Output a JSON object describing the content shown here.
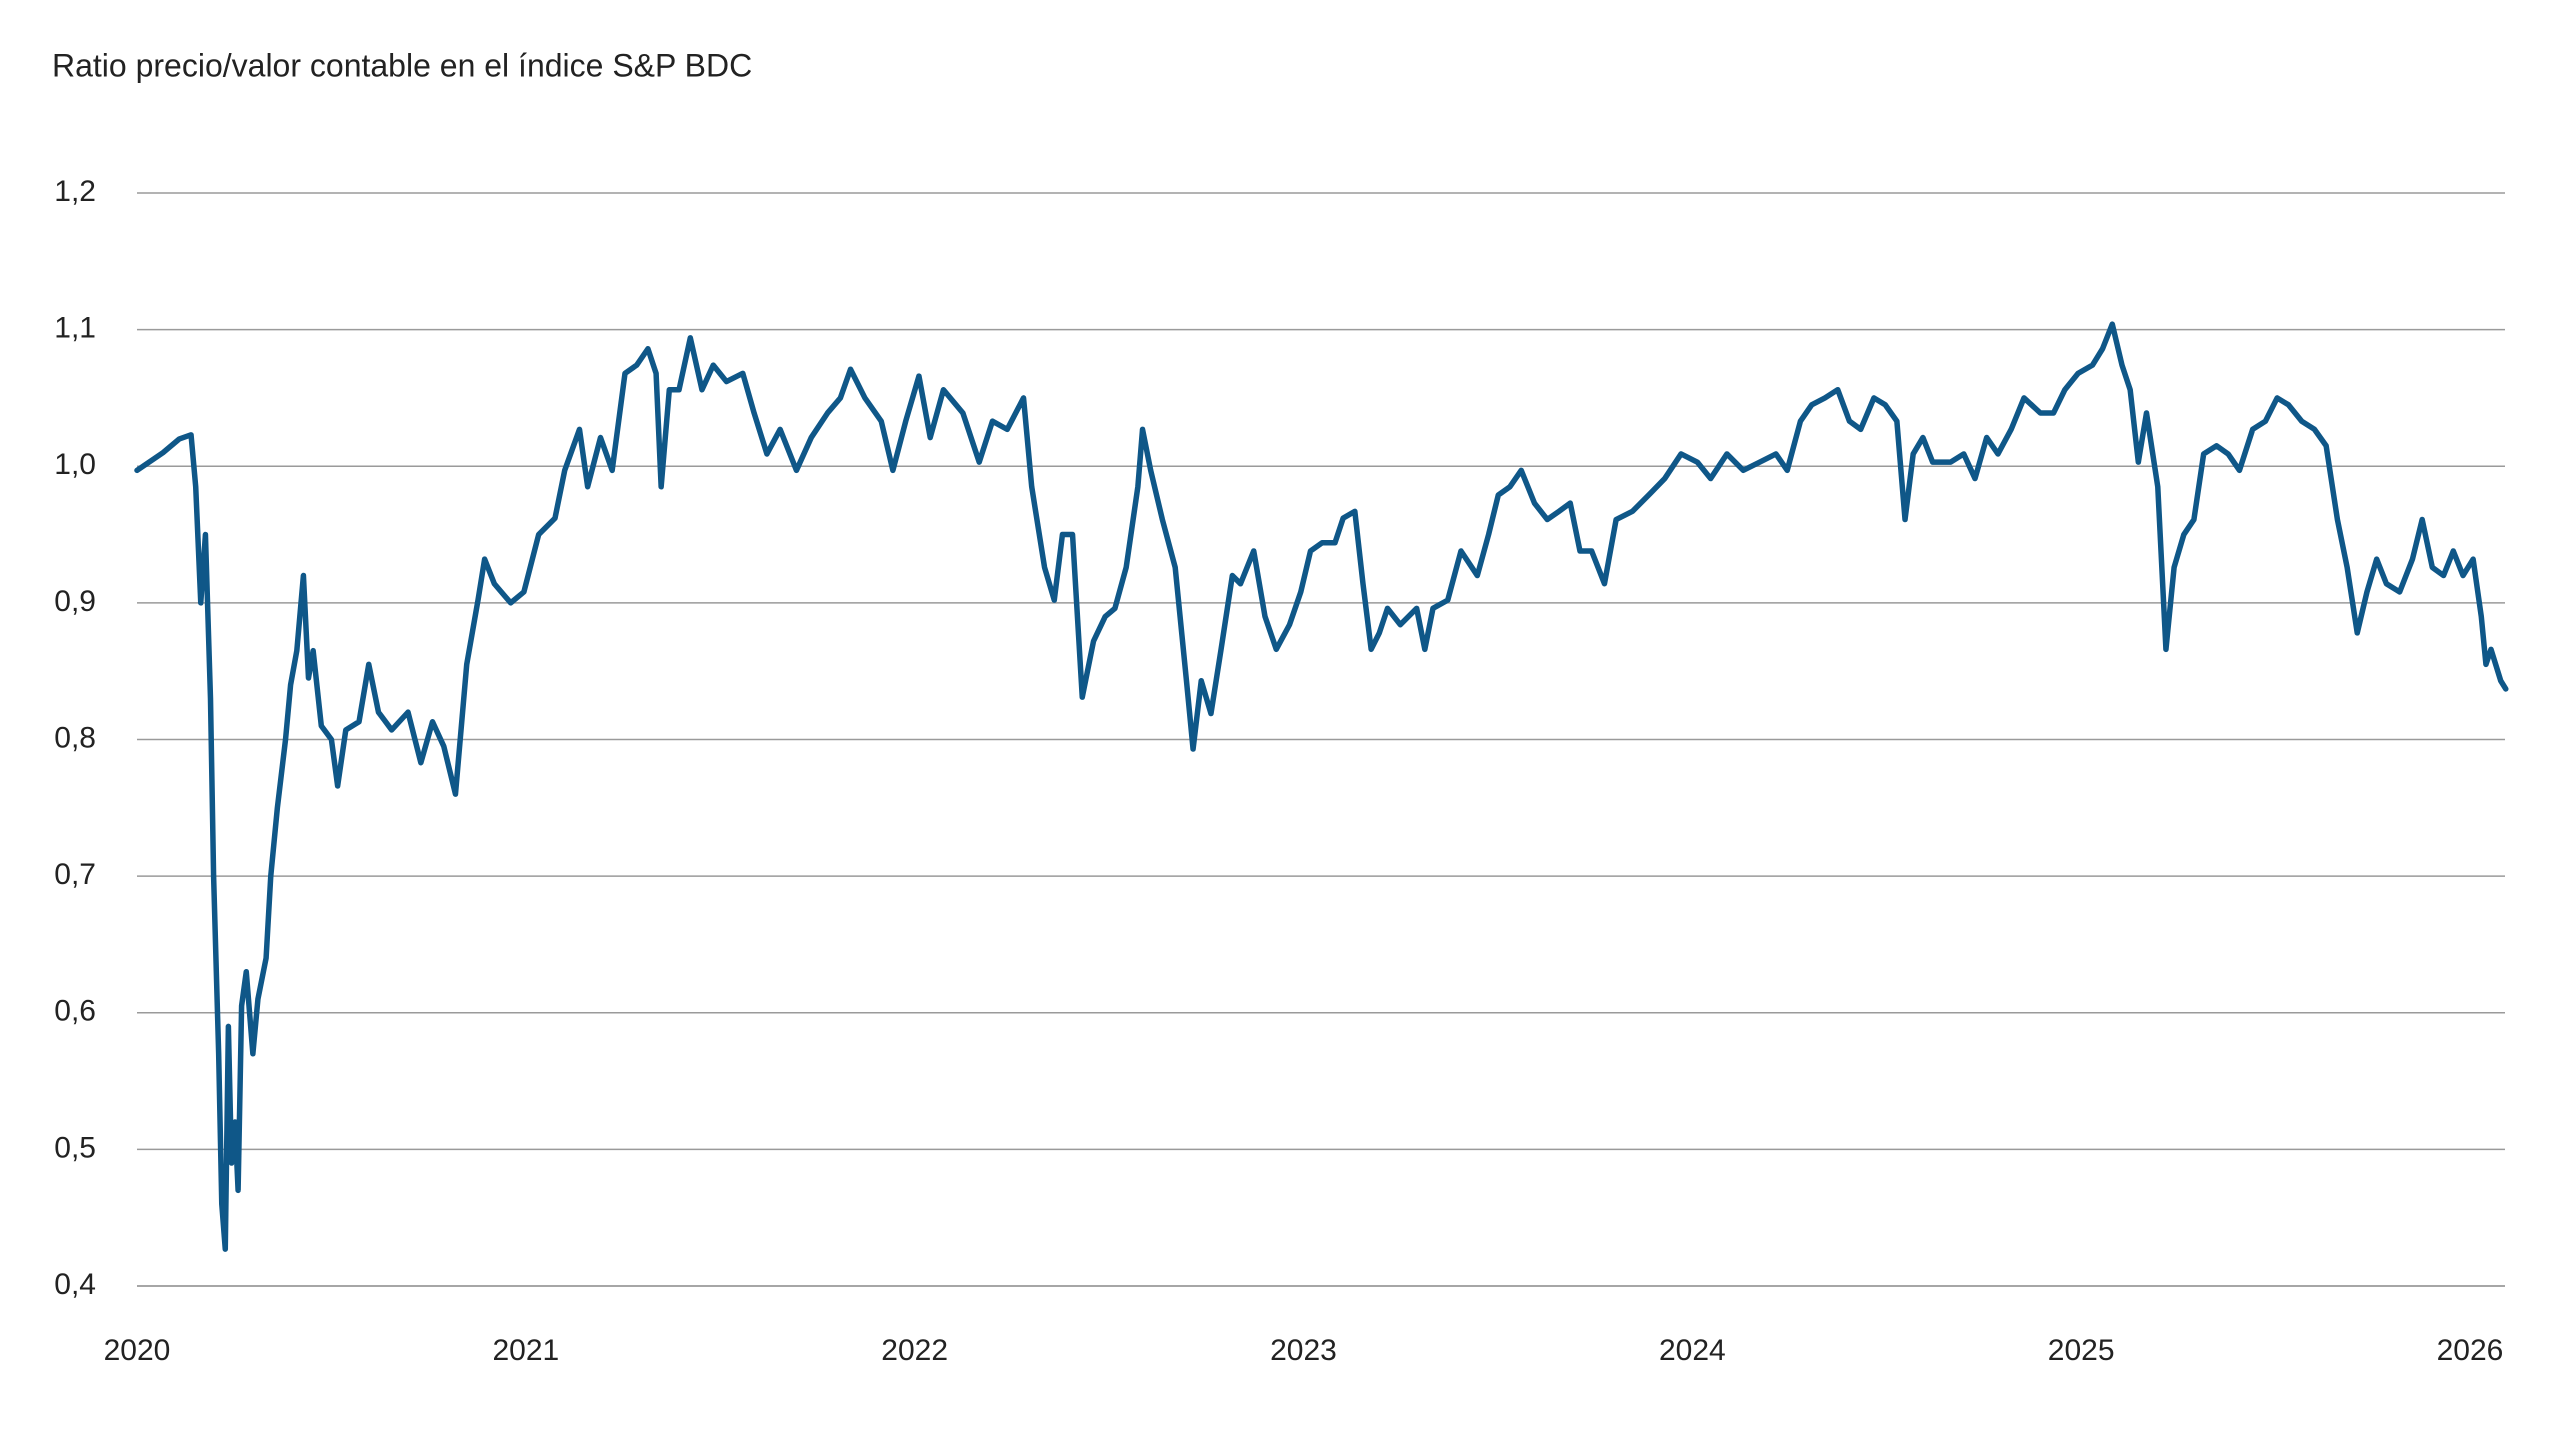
{
  "chart_data": {
    "type": "line",
    "title": "Ratio precio/valor contable en el índice S&P BDC",
    "color": "#0f5788",
    "grid": true,
    "xlim": [
      2020,
      2026.09
    ],
    "xticks": [
      2020,
      2021,
      2022,
      2023,
      2024,
      2025,
      2026
    ],
    "ylim": [
      0.4,
      1.2
    ],
    "yticks": [
      {
        "value": 0.4,
        "label": "0,4"
      },
      {
        "value": 0.5,
        "label": "0,5"
      },
      {
        "value": 0.6,
        "label": "0,6"
      },
      {
        "value": 0.7,
        "label": "0,7"
      },
      {
        "value": 0.8,
        "label": "0,8"
      },
      {
        "value": 0.9,
        "label": "0,9"
      },
      {
        "value": 1.0,
        "label": "1,0"
      },
      {
        "value": 1.1,
        "label": "1,1"
      },
      {
        "value": 1.2,
        "label": "1,2"
      }
    ],
    "x": [
      2020.0,
      2020.067,
      2020.109,
      2020.139,
      2020.151,
      2020.164,
      2020.176,
      2020.189,
      2020.197,
      2020.21,
      2020.218,
      2020.227,
      2020.235,
      2020.243,
      2020.252,
      2020.26,
      2020.269,
      2020.281,
      2020.298,
      2020.311,
      2020.332,
      2020.344,
      2020.361,
      2020.382,
      2020.395,
      2020.411,
      2020.428,
      2020.441,
      2020.453,
      2020.474,
      2020.5,
      2020.516,
      2020.537,
      2020.571,
      2020.596,
      2020.621,
      2020.655,
      2020.697,
      2020.73,
      2020.76,
      2020.789,
      2020.819,
      2020.848,
      2020.877,
      2020.894,
      2020.919,
      2020.961,
      2020.995,
      2021.033,
      2021.075,
      2021.1,
      2021.138,
      2021.159,
      2021.192,
      2021.222,
      2021.255,
      2021.285,
      2021.314,
      2021.335,
      2021.348,
      2021.369,
      2021.394,
      2021.423,
      2021.453,
      2021.482,
      2021.516,
      2021.558,
      2021.587,
      2021.62,
      2021.654,
      2021.696,
      2021.734,
      2021.776,
      2021.809,
      2021.835,
      2021.872,
      2021.914,
      2021.944,
      2021.977,
      2022.011,
      2022.04,
      2022.074,
      2022.124,
      2022.166,
      2022.2,
      2022.238,
      2022.28,
      2022.301,
      2022.334,
      2022.359,
      2022.38,
      2022.406,
      2022.431,
      2022.46,
      2022.49,
      2022.515,
      2022.544,
      2022.574,
      2022.586,
      2022.607,
      2022.637,
      2022.67,
      2022.699,
      2022.716,
      2022.737,
      2022.762,
      2022.788,
      2022.817,
      2022.838,
      2022.872,
      2022.901,
      2022.93,
      2022.964,
      2022.993,
      2023.018,
      2023.048,
      2023.081,
      2023.102,
      2023.132,
      2023.153,
      2023.174,
      2023.195,
      2023.216,
      2023.249,
      2023.291,
      2023.312,
      2023.333,
      2023.371,
      2023.405,
      2023.447,
      2023.476,
      2023.501,
      2023.531,
      2023.56,
      2023.594,
      2023.627,
      2023.657,
      2023.686,
      2023.711,
      2023.741,
      2023.774,
      2023.804,
      2023.846,
      2023.888,
      2023.929,
      2023.971,
      2024.013,
      2024.047,
      2024.089,
      2024.131,
      2024.173,
      2024.215,
      2024.244,
      2024.278,
      2024.307,
      2024.341,
      2024.374,
      2024.404,
      2024.433,
      2024.467,
      2024.496,
      2024.526,
      2024.547,
      2024.568,
      2024.593,
      2024.618,
      2024.664,
      2024.698,
      2024.727,
      2024.757,
      2024.786,
      2024.82,
      2024.853,
      2024.895,
      2024.929,
      2024.958,
      2024.992,
      2025.029,
      2025.055,
      2025.08,
      2025.105,
      2025.126,
      2025.147,
      2025.168,
      2025.197,
      2025.218,
      2025.239,
      2025.264,
      2025.29,
      2025.315,
      2025.348,
      2025.378,
      2025.407,
      2025.441,
      2025.474,
      2025.504,
      2025.533,
      2025.567,
      2025.6,
      2025.63,
      2025.659,
      2025.684,
      2025.71,
      2025.735,
      2025.76,
      2025.785,
      2025.819,
      2025.852,
      2025.877,
      2025.903,
      2025.932,
      2025.957,
      2025.982,
      2026.008,
      2026.029,
      2026.041,
      2026.054,
      2026.079,
      2026.092
    ],
    "values": [
      0.997,
      1.01,
      1.02,
      1.023,
      0.985,
      0.9,
      0.95,
      0.83,
      0.7,
      0.57,
      0.46,
      0.427,
      0.59,
      0.49,
      0.52,
      0.47,
      0.605,
      0.63,
      0.57,
      0.61,
      0.64,
      0.7,
      0.75,
      0.8,
      0.84,
      0.865,
      0.92,
      0.845,
      0.865,
      0.81,
      0.8,
      0.766,
      0.807,
      0.813,
      0.855,
      0.82,
      0.807,
      0.82,
      0.783,
      0.813,
      0.795,
      0.76,
      0.855,
      0.902,
      0.932,
      0.914,
      0.9,
      0.908,
      0.95,
      0.962,
      0.997,
      1.027,
      0.985,
      1.021,
      0.997,
      1.068,
      1.074,
      1.086,
      1.068,
      0.985,
      1.056,
      1.056,
      1.094,
      1.056,
      1.074,
      1.062,
      1.068,
      1.039,
      1.009,
      1.027,
      0.997,
      1.021,
      1.039,
      1.05,
      1.071,
      1.05,
      1.033,
      0.997,
      1.033,
      1.066,
      1.021,
      1.056,
      1.039,
      1.003,
      1.033,
      1.027,
      1.05,
      0.985,
      0.926,
      0.902,
      0.95,
      0.95,
      0.831,
      0.872,
      0.89,
      0.896,
      0.926,
      0.985,
      1.027,
      0.997,
      0.961,
      0.926,
      0.843,
      0.793,
      0.843,
      0.819,
      0.866,
      0.92,
      0.914,
      0.938,
      0.89,
      0.866,
      0.884,
      0.908,
      0.938,
      0.944,
      0.944,
      0.962,
      0.967,
      0.914,
      0.866,
      0.878,
      0.896,
      0.884,
      0.896,
      0.866,
      0.896,
      0.902,
      0.938,
      0.92,
      0.95,
      0.979,
      0.985,
      0.997,
      0.973,
      0.961,
      0.967,
      0.973,
      0.938,
      0.938,
      0.914,
      0.961,
      0.967,
      0.979,
      0.991,
      1.009,
      1.003,
      0.991,
      1.009,
      0.997,
      1.003,
      1.009,
      0.997,
      1.033,
      1.045,
      1.05,
      1.056,
      1.033,
      1.027,
      1.05,
      1.045,
      1.033,
      0.961,
      1.009,
      1.021,
      1.003,
      1.003,
      1.009,
      0.991,
      1.021,
      1.009,
      1.027,
      1.05,
      1.039,
      1.039,
      1.056,
      1.068,
      1.074,
      1.086,
      1.104,
      1.074,
      1.056,
      1.003,
      1.039,
      0.985,
      0.866,
      0.926,
      0.95,
      0.961,
      1.009,
      1.015,
      1.009,
      0.997,
      1.027,
      1.033,
      1.05,
      1.045,
      1.033,
      1.027,
      1.015,
      0.961,
      0.926,
      0.878,
      0.908,
      0.932,
      0.914,
      0.908,
      0.932,
      0.961,
      0.926,
      0.92,
      0.938,
      0.92,
      0.932,
      0.89,
      0.855,
      0.866,
      0.843,
      0.837
    ]
  }
}
